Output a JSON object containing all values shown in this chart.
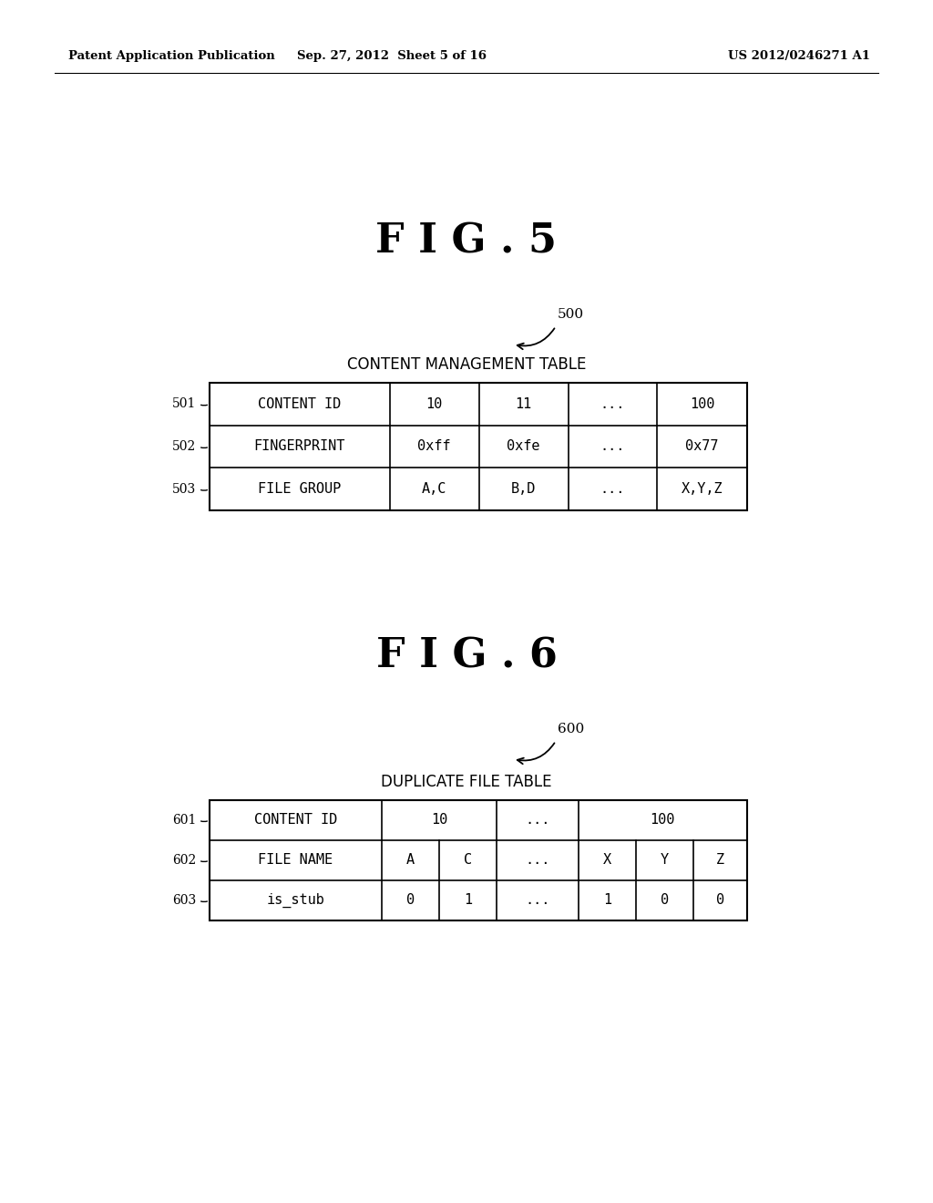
{
  "background_color": "#ffffff",
  "header_text": {
    "left": "Patent Application Publication",
    "center": "Sep. 27, 2012  Sheet 5 of 16",
    "right": "US 2012/0246271 A1"
  },
  "fig5": {
    "title": "F I G . 5",
    "label": "500",
    "table_title": "CONTENT MANAGEMENT TABLE",
    "rows": [
      {
        "label": "501",
        "cells": [
          "CONTENT ID",
          "10",
          "11",
          "...",
          "100"
        ]
      },
      {
        "label": "502",
        "cells": [
          "FINGERPRINT",
          "0xff",
          "0xfe",
          "...",
          "0x77"
        ]
      },
      {
        "label": "503",
        "cells": [
          "FILE GROUP",
          "A,C",
          "B,D",
          "...",
          "X,Y,Z"
        ]
      }
    ]
  },
  "fig6": {
    "title": "F I G . 6",
    "label": "600",
    "table_title": "DUPLICATE FILE TABLE",
    "row1_label": "601",
    "row2_label": "602",
    "row3_label": "603",
    "row1_cells_merged": [
      "CONTENT ID",
      "10",
      "...",
      "100"
    ],
    "row2_cells": [
      "FILE NAME",
      "A",
      "C",
      "...",
      "X",
      "Y",
      "Z"
    ],
    "row3_cells": [
      "is_stub",
      "0",
      "1",
      "...",
      "1",
      "0",
      "0"
    ]
  }
}
